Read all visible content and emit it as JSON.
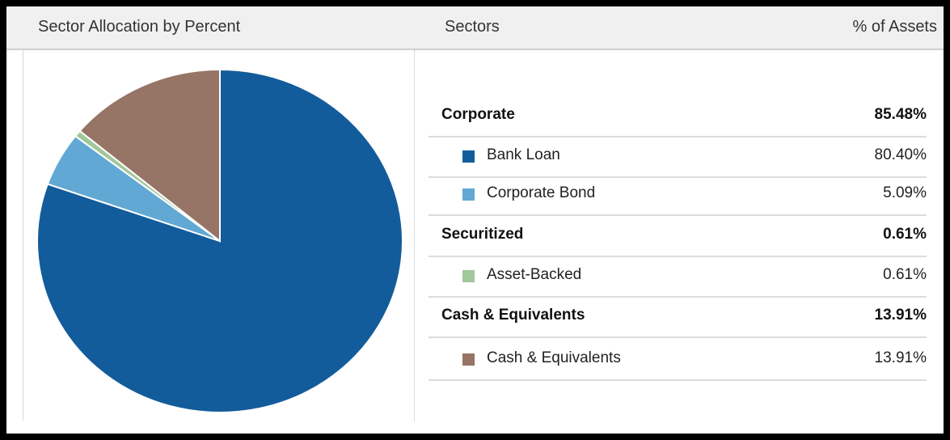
{
  "header": {
    "title": "Sector Allocation by Percent",
    "sectors": "Sectors",
    "assets": "% of Assets"
  },
  "rows": [
    {
      "type": "group",
      "name": "Corporate",
      "value": "85.48%"
    },
    {
      "type": "item",
      "name": "Bank Loan",
      "value": "80.40%",
      "color": "#135c9b"
    },
    {
      "type": "item",
      "name": "Corporate Bond",
      "value": "5.09%",
      "color": "#62a8d4"
    },
    {
      "type": "group",
      "name": "Securitized",
      "value": "0.61%"
    },
    {
      "type": "item",
      "name": "Asset-Backed",
      "value": "0.61%",
      "color": "#a2c79a"
    },
    {
      "type": "group",
      "name": "Cash & Equivalents",
      "value": "13.91%"
    },
    {
      "type": "item",
      "name": "Cash & Equivalents",
      "value": "13.91%",
      "color": "#967466"
    }
  ],
  "chart_data": {
    "type": "pie",
    "title": "Sector Allocation by Percent",
    "categories": [
      "Bank Loan",
      "Corporate Bond",
      "Asset-Backed",
      "Cash & Equivalents"
    ],
    "values": [
      80.4,
      5.09,
      0.61,
      13.91
    ],
    "colors": [
      "#135c9b",
      "#62a8d4",
      "#a2c79a",
      "#967466"
    ],
    "start_angle": "12 o'clock",
    "direction": "clockwise",
    "legend": "right"
  }
}
